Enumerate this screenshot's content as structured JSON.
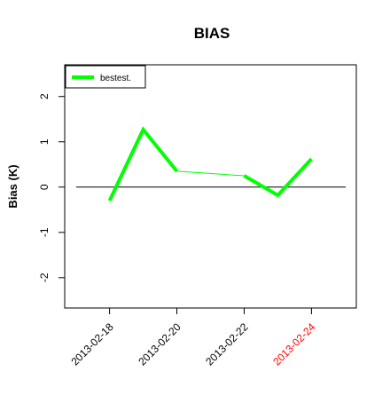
{
  "chart_data": {
    "type": "line",
    "title": "BIAS",
    "y_label": "Bias (K)",
    "x": [
      "2013-02-18",
      "2013-02-19",
      "2013-02-20",
      "2013-02-21",
      "2013-02-22",
      "2013-02-23",
      "2013-02-24"
    ],
    "series": [
      {
        "name": "bestest.",
        "color": "#00ff00",
        "values": [
          -0.3,
          1.27,
          0.35,
          null,
          0.25,
          -0.18,
          0.62
        ]
      }
    ],
    "xlim": [
      "2013-02-16T16:00",
      "2013-02-25T08:00"
    ],
    "xticks": [
      "2013-02-18",
      "2013-02-20",
      "2013-02-22",
      "2013-02-24"
    ],
    "xtick_colors": [
      "black",
      "black",
      "black",
      "red"
    ],
    "ylim": [
      -2.67,
      2.7
    ],
    "yticks": [
      -2,
      -1,
      0,
      1,
      2
    ],
    "hline": 0,
    "legend": "top-left"
  }
}
